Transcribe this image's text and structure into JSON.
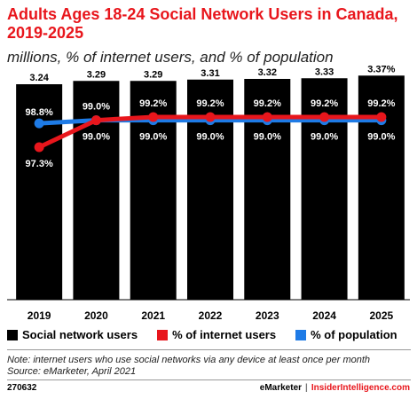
{
  "header": {
    "title": "Adults Ages 18-24 Social Network Users in Canada, 2019-2025",
    "subtitle": "millions, % of internet users, and % of population"
  },
  "legend": {
    "items": [
      {
        "label": "Social network users",
        "color": "#000000"
      },
      {
        "label": "% of internet users",
        "color": "#e8161c"
      },
      {
        "label": "% of population",
        "color": "#1e7be6"
      }
    ]
  },
  "notes": {
    "line1": "Note: internet users who use social networks via any device at least once per month",
    "line2": "Source: eMarketer, April 2021"
  },
  "footer": {
    "id": "270632",
    "brand": "eMarketer",
    "separator": "|",
    "site": "InsiderIntelligence.com"
  },
  "chart_data": {
    "type": "bar",
    "categories": [
      "2019",
      "2020",
      "2021",
      "2022",
      "2023",
      "2024",
      "2025"
    ],
    "series": [
      {
        "name": "Social network users",
        "type": "bar",
        "color": "#000000",
        "values": [
          3.24,
          3.29,
          3.29,
          3.31,
          3.32,
          3.33,
          3.37
        ],
        "labels": [
          "3.24",
          "3.29",
          "3.29",
          "3.31",
          "3.32",
          "3.33",
          "3.37%"
        ]
      },
      {
        "name": "% of internet users",
        "type": "line",
        "color": "#e8161c",
        "values": [
          97.3,
          99.0,
          99.2,
          99.2,
          99.2,
          99.2,
          99.2
        ],
        "labels": [
          "97.3%",
          "99.0%",
          "99.2%",
          "99.2%",
          "99.2%",
          "99.2%",
          "99.2%"
        ]
      },
      {
        "name": "% of population",
        "type": "line",
        "color": "#1e7be6",
        "values": [
          98.8,
          99.0,
          99.0,
          99.0,
          99.0,
          99.0,
          99.0
        ],
        "labels": [
          "98.8%",
          "99.0%",
          "99.0%",
          "99.0%",
          "99.0%",
          "99.0%",
          "99.0%"
        ]
      }
    ],
    "grid": false
  }
}
